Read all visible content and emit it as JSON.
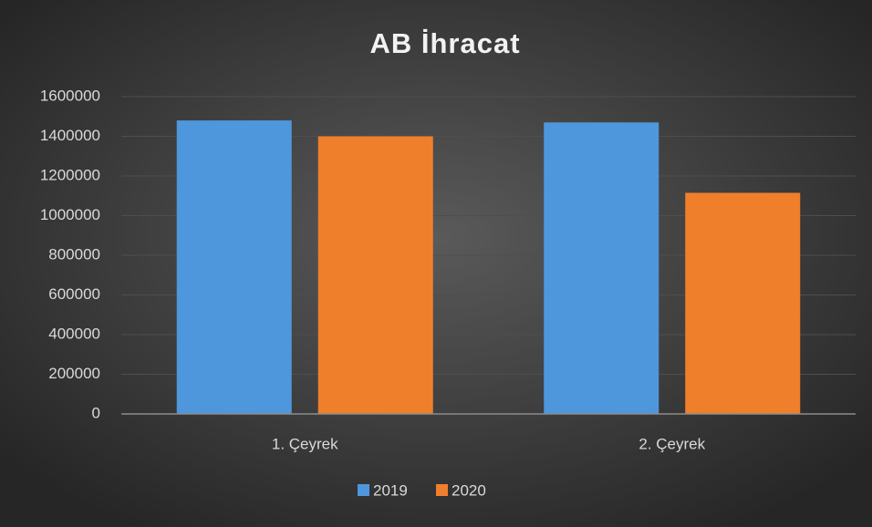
{
  "chart_data": {
    "type": "bar",
    "title": "AB İhracat",
    "categories": [
      "1. Çeyrek",
      "2. Çeyrek"
    ],
    "series": [
      {
        "name": "2019",
        "color": "#4f97dc",
        "values": [
          1480000,
          1470000
        ]
      },
      {
        "name": "2020",
        "color": "#f07f2c",
        "values": [
          1400000,
          1115000
        ]
      }
    ],
    "ylim": [
      0,
      1600000
    ],
    "yticks": [
      0,
      200000,
      400000,
      600000,
      800000,
      1000000,
      1200000,
      1400000,
      1600000
    ],
    "grid": true,
    "legend": "bottom"
  }
}
